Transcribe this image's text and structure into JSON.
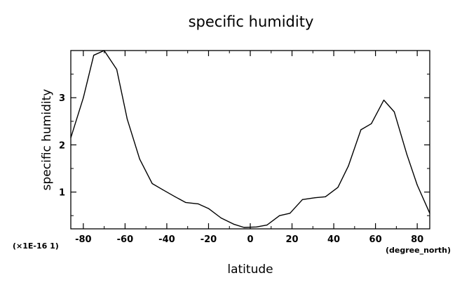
{
  "chart_data": {
    "type": "line",
    "title": "specific humidity",
    "xlabel": "latitude",
    "ylabel": "specific humidity",
    "x_unit": "(degree_north)",
    "y_scale_note": "(×1E-16 1)",
    "xlim": [
      -86,
      86
    ],
    "ylim": [
      0.22,
      4.0
    ],
    "x_ticks": [
      -80,
      -60,
      -40,
      -20,
      0,
      20,
      40,
      60,
      80
    ],
    "y_ticks": [
      1,
      2,
      3
    ],
    "grid": false,
    "series": [
      {
        "x": [
          -86,
          -80,
          -75,
          -70,
          -64,
          -59,
          -53,
          -47,
          -42,
          -36,
          -31,
          -25,
          -20,
          -14,
          -8,
          -3,
          3,
          8,
          14,
          19,
          25,
          31,
          36,
          42,
          47,
          53,
          58,
          64,
          69,
          75,
          80,
          86
        ],
        "y": [
          2.15,
          3.0,
          3.9,
          4.0,
          3.6,
          2.55,
          1.7,
          1.18,
          1.05,
          0.9,
          0.78,
          0.75,
          0.65,
          0.45,
          0.32,
          0.25,
          0.26,
          0.3,
          0.5,
          0.55,
          0.84,
          0.88,
          0.9,
          1.1,
          1.55,
          2.32,
          2.45,
          2.95,
          2.7,
          1.8,
          1.15,
          0.55
        ]
      }
    ]
  }
}
